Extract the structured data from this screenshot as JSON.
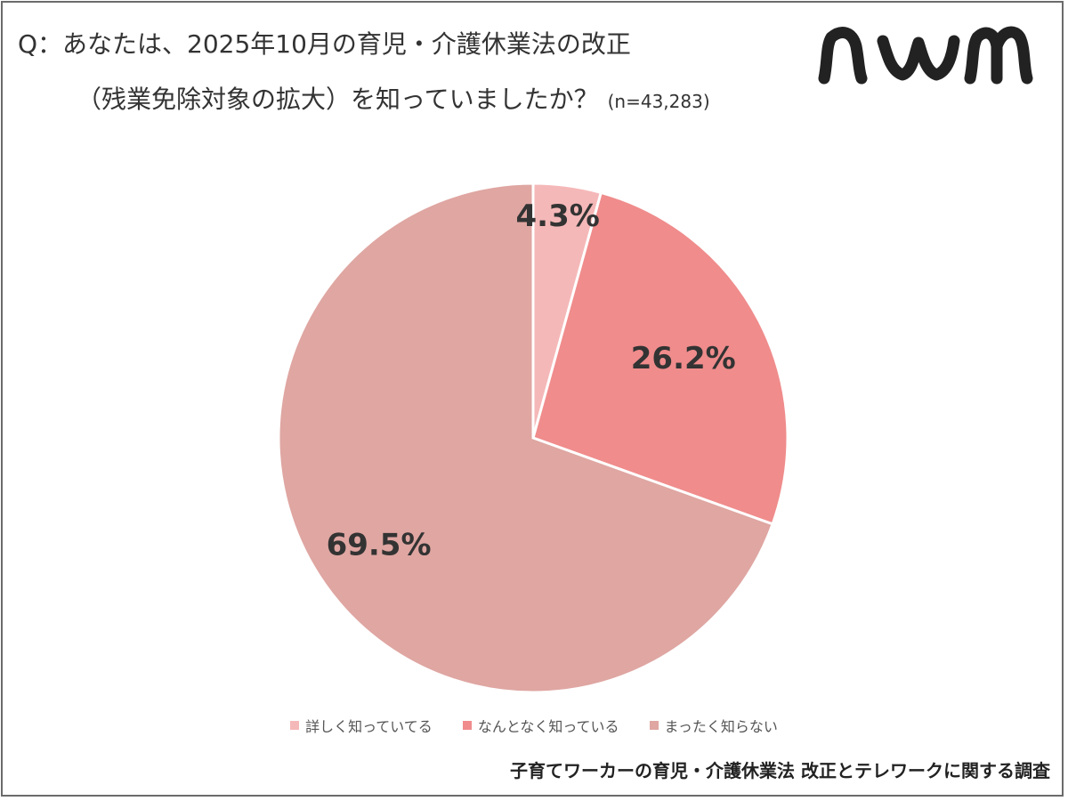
{
  "header": {
    "title_line1": "Q：あなたは、2025年10月の育児・介護休業法の改正",
    "title_line2": "（残業免除対象の拡大）を知っていましたか？",
    "sample_size": "(n=43,283)"
  },
  "logo": {
    "text": "nwm",
    "color": "#222222"
  },
  "chart_data": {
    "type": "pie",
    "categories": [
      "詳しく知っていてる",
      "なんとなく知っている",
      "まったく知らない"
    ],
    "values": [
      4.3,
      26.2,
      69.5
    ],
    "labels": [
      "4.3%",
      "26.2%",
      "69.5%"
    ],
    "colors": [
      "#f5b8b8",
      "#f08c8c",
      "#dfa6a2"
    ],
    "start_angle_deg": 0,
    "direction": "clockwise",
    "legend_position": "bottom"
  },
  "legend": {
    "items": [
      {
        "label": "詳しく知っていてる",
        "color": "#f5b8b8"
      },
      {
        "label": "なんとなく知っている",
        "color": "#f08c8c"
      },
      {
        "label": "まったく知らない",
        "color": "#dfa6a2"
      }
    ]
  },
  "footer": {
    "text": "子育てワーカーの育児・介護休業法 改正とテレワークに関する調査"
  }
}
